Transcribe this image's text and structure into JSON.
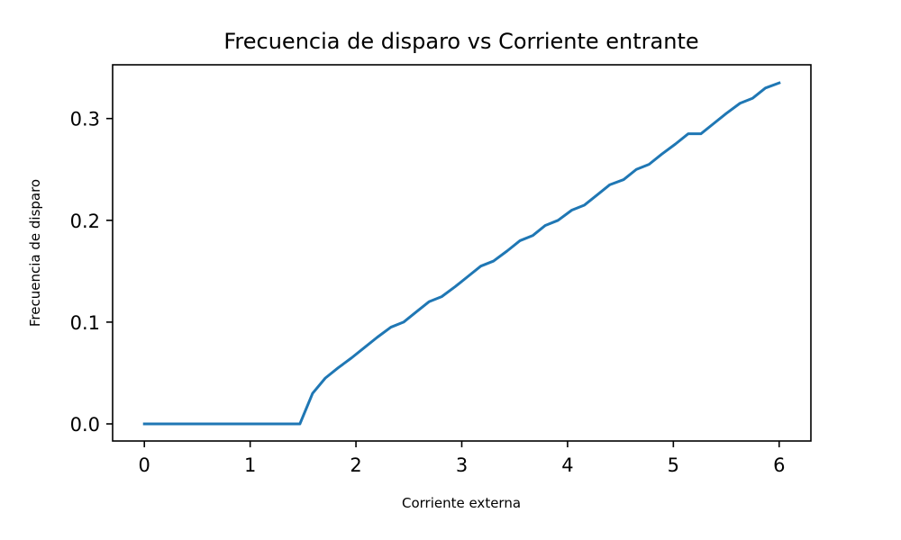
{
  "chart_data": {
    "type": "line",
    "title": "Frecuencia de disparo vs Corriente entrante",
    "xlabel": "Corriente externa",
    "ylabel": "Frecuencia de disparo",
    "xlim": [
      -0.3,
      6.3
    ],
    "ylim": [
      -0.0168,
      0.3528
    ],
    "xticks": [
      0,
      1,
      2,
      3,
      4,
      5,
      6
    ],
    "xtick_labels": [
      "0",
      "1",
      "2",
      "3",
      "4",
      "5",
      "6"
    ],
    "yticks": [
      0.0,
      0.1,
      0.2,
      0.3
    ],
    "ytick_labels": [
      "0.0",
      "0.1",
      "0.2",
      "0.3"
    ],
    "grid": false,
    "legend": "none",
    "series": [
      {
        "color": "#1f77b4",
        "x": [
          0,
          0.12,
          0.24,
          0.36,
          0.48,
          0.6,
          0.72,
          0.84,
          0.96,
          1.08,
          1.2,
          1.32,
          1.47,
          1.59,
          1.71,
          1.83,
          1.96,
          2.08,
          2.2,
          2.33,
          2.45,
          2.57,
          2.69,
          2.81,
          2.94,
          3.06,
          3.18,
          3.3,
          3.43,
          3.55,
          3.67,
          3.79,
          3.91,
          4.04,
          4.16,
          4.28,
          4.4,
          4.53,
          4.65,
          4.77,
          4.89,
          5.02,
          5.14,
          5.26,
          5.38,
          5.5,
          5.63,
          5.75,
          5.87,
          6.0
        ],
        "y": [
          0,
          0,
          0,
          0,
          0,
          0,
          0,
          0,
          0,
          0,
          0,
          0,
          0,
          0.03,
          0.045,
          0.055,
          0.065,
          0.075,
          0.085,
          0.095,
          0.1,
          0.11,
          0.12,
          0.125,
          0.135,
          0.145,
          0.155,
          0.16,
          0.17,
          0.18,
          0.185,
          0.195,
          0.2,
          0.21,
          0.215,
          0.225,
          0.235,
          0.24,
          0.25,
          0.255,
          0.265,
          0.275,
          0.285,
          0.285,
          0.295,
          0.305,
          0.315,
          0.32,
          0.33,
          0.335
        ]
      }
    ]
  }
}
